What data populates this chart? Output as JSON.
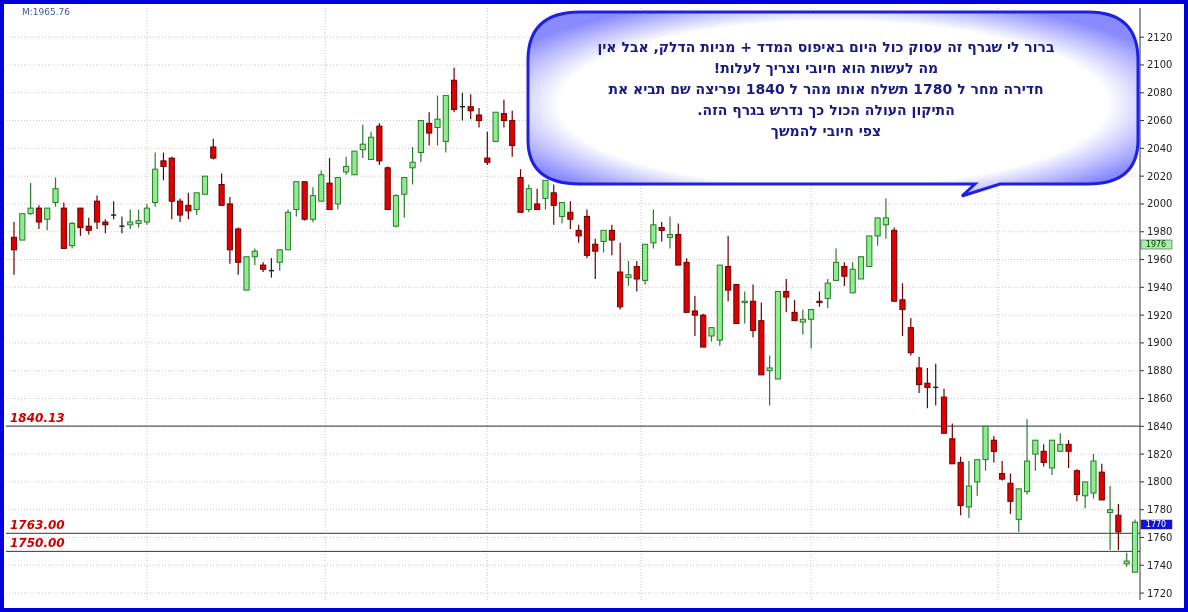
{
  "chart_data": {
    "type": "candlestick",
    "categories": [
      null,
      null,
      null,
      null,
      null,
      null,
      null,
      null,
      null,
      null,
      null,
      null,
      null,
      null,
      null,
      null,
      null,
      null,
      null,
      null,
      null,
      null,
      null,
      null,
      null,
      null,
      null,
      null,
      null,
      null,
      null,
      null,
      null,
      null,
      null,
      null,
      null,
      null,
      null,
      null,
      null,
      null,
      null,
      null,
      null,
      null,
      null,
      null,
      null,
      null,
      null,
      null,
      null,
      null,
      null,
      null,
      null,
      null,
      null,
      null,
      null,
      null,
      null,
      null,
      null,
      null,
      null,
      null,
      null,
      null,
      null,
      null,
      null,
      null,
      null,
      null,
      null,
      null,
      null,
      null,
      null,
      null,
      null,
      null,
      null,
      null,
      null,
      null,
      null,
      null,
      null,
      null,
      null,
      null,
      null,
      null,
      null,
      null,
      null,
      null,
      null,
      null,
      null,
      null,
      null,
      null,
      null,
      null,
      null,
      null,
      null,
      null,
      null,
      null,
      null,
      null,
      null,
      null,
      null,
      null,
      null,
      null,
      null,
      null,
      null,
      null,
      null,
      null,
      null,
      null,
      null,
      null,
      null,
      null,
      null,
      null
    ],
    "ohlc": [
      [
        1976,
        1987,
        1949,
        1967
      ],
      [
        1974,
        1993,
        1974,
        1993
      ],
      [
        1993,
        2015,
        1992,
        1997
      ],
      [
        1997,
        1999,
        1982,
        1987
      ],
      [
        1989,
        1997,
        1981,
        1997
      ],
      [
        2001,
        2019,
        1998,
        2011
      ],
      [
        1997,
        2001,
        1968,
        1968
      ],
      [
        1970,
        1987,
        1968,
        1986
      ],
      [
        1997,
        1997,
        1977,
        1983
      ],
      [
        1984,
        1990,
        1978,
        1981
      ],
      [
        2002,
        2006,
        1982,
        1987
      ],
      [
        1987,
        1989,
        1979,
        1985
      ],
      [
        1992,
        2002,
        1989,
        1992
      ],
      [
        1984,
        1991,
        1979,
        1984
      ],
      [
        1985,
        1996,
        1982,
        1987
      ],
      [
        1986,
        1996,
        1983,
        1988
      ],
      [
        1987,
        2000,
        1985,
        1997
      ],
      [
        2001,
        2037,
        1998,
        2025
      ],
      [
        2031,
        2037,
        2017,
        2027
      ],
      [
        2033,
        2034,
        1989,
        2002
      ],
      [
        2002,
        2004,
        1987,
        1992
      ],
      [
        1999,
        2008,
        1989,
        1995
      ],
      [
        1996,
        2008,
        1992,
        2008
      ],
      [
        2007,
        2020,
        2007,
        2020
      ],
      [
        2041,
        2047,
        2032,
        2033
      ],
      [
        2014,
        2022,
        1999,
        1999
      ],
      [
        2000,
        2005,
        1957,
        1967
      ],
      [
        1982,
        1983,
        1949,
        1958
      ],
      [
        1938,
        1962,
        1938,
        1962
      ],
      [
        1962,
        1968,
        1956,
        1966
      ],
      [
        1956,
        1958,
        1951,
        1953
      ],
      [
        1952,
        1961,
        1947,
        1952
      ],
      [
        1958,
        1967,
        1952,
        1967
      ],
      [
        1967,
        1996,
        1967,
        1994
      ],
      [
        1996,
        2016,
        1991,
        2016
      ],
      [
        2016,
        2016,
        1988,
        1989
      ],
      [
        1989,
        2012,
        1987,
        2006
      ],
      [
        2002,
        2024,
        2002,
        2021
      ],
      [
        2015,
        2033,
        1996,
        1996
      ],
      [
        2000,
        2019,
        1996,
        2019
      ],
      [
        2023,
        2034,
        2021,
        2027
      ],
      [
        2021,
        2038,
        2021,
        2038
      ],
      [
        2039,
        2057,
        2033,
        2043
      ],
      [
        2032,
        2052,
        2032,
        2048
      ],
      [
        2056,
        2058,
        2028,
        2031
      ],
      [
        2026,
        2027,
        1996,
        1996
      ],
      [
        1984,
        2007,
        1983,
        2006
      ],
      [
        2007,
        2019,
        1990,
        2019
      ],
      [
        2026,
        2041,
        2014,
        2030
      ],
      [
        2037,
        2060,
        2030,
        2060
      ],
      [
        2058,
        2066,
        2042,
        2051
      ],
      [
        2055,
        2078,
        2042,
        2061
      ],
      [
        2045,
        2078,
        2037,
        2078
      ],
      [
        2089,
        2098,
        2066,
        2068
      ],
      [
        2070,
        2080,
        2060,
        2070
      ],
      [
        2070,
        2079,
        2061,
        2067
      ],
      [
        2064,
        2069,
        2055,
        2060
      ],
      [
        2033,
        2052,
        2028,
        2030
      ],
      [
        2045,
        2066,
        2045,
        2066
      ],
      [
        2065,
        2075,
        2055,
        2060
      ],
      [
        2060,
        2067,
        2034,
        2042
      ],
      [
        2019,
        2025,
        1994,
        1994
      ],
      [
        1996,
        2014,
        1994,
        2011
      ],
      [
        2000,
        2011,
        1996,
        1996
      ],
      [
        2004,
        2017,
        1996,
        2017
      ],
      [
        2008,
        2014,
        1985,
        1999
      ],
      [
        1991,
        2001,
        1986,
        2001
      ],
      [
        1994,
        2002,
        1982,
        1989
      ],
      [
        1981,
        1985,
        1972,
        1977
      ],
      [
        1991,
        1996,
        1961,
        1963
      ],
      [
        1971,
        1975,
        1946,
        1966
      ],
      [
        1973,
        1981,
        1965,
        1981
      ],
      [
        1981,
        1985,
        1963,
        1974
      ],
      [
        1951,
        1972,
        1924,
        1926
      ],
      [
        1947,
        1959,
        1941,
        1949
      ],
      [
        1955,
        1959,
        1937,
        1946
      ],
      [
        1945,
        1971,
        1942,
        1971
      ],
      [
        1972,
        1996,
        1968,
        1985
      ],
      [
        1983,
        1987,
        1973,
        1981
      ],
      [
        1976,
        1991,
        1968,
        1978
      ],
      [
        1978,
        1986,
        1956,
        1956
      ],
      [
        1958,
        1961,
        1922,
        1922
      ],
      [
        1923,
        1934,
        1905,
        1920
      ],
      [
        1920,
        1921,
        1897,
        1897
      ],
      [
        1905,
        1911,
        1901,
        1911
      ],
      [
        1902,
        1956,
        1898,
        1956
      ],
      [
        1955,
        1977,
        1930,
        1938
      ],
      [
        1942,
        1942,
        1914,
        1914
      ],
      [
        1929,
        1937,
        1914,
        1930
      ],
      [
        1930,
        1942,
        1904,
        1909
      ],
      [
        1916,
        1929,
        1877,
        1877
      ],
      [
        1880,
        1891,
        1855,
        1882
      ],
      [
        1874,
        1937,
        1874,
        1937
      ],
      [
        1937,
        1946,
        1922,
        1933
      ],
      [
        1922,
        1931,
        1916,
        1916
      ],
      [
        1915,
        1924,
        1906,
        1917
      ],
      [
        1917,
        1924,
        1896,
        1924
      ],
      [
        1930,
        1937,
        1926,
        1929
      ],
      [
        1932,
        1946,
        1925,
        1943
      ],
      [
        1945,
        1968,
        1945,
        1958
      ],
      [
        1955,
        1958,
        1941,
        1948
      ],
      [
        1936,
        1958,
        1936,
        1953
      ],
      [
        1946,
        1962,
        1946,
        1962
      ],
      [
        1955,
        1977,
        1955,
        1977
      ],
      [
        1977,
        1990,
        1970,
        1990
      ],
      [
        1985,
        2004,
        1975,
        1990
      ],
      [
        1981,
        1983,
        1930,
        1930
      ],
      [
        1931,
        1943,
        1905,
        1924
      ],
      [
        1911,
        1918,
        1891,
        1893
      ],
      [
        1882,
        1890,
        1864,
        1870
      ],
      [
        1871,
        1882,
        1853,
        1868
      ],
      [
        1868,
        1885,
        1855,
        1868
      ],
      [
        1861,
        1867,
        1835,
        1835
      ],
      [
        1831,
        1842,
        1813,
        1813
      ],
      [
        1814,
        1818,
        1776,
        1783
      ],
      [
        1782,
        1815,
        1774,
        1797
      ],
      [
        1800,
        1816,
        1790,
        1816
      ],
      [
        1816,
        1840,
        1808,
        1840
      ],
      [
        1830,
        1833,
        1814,
        1822
      ],
      [
        1806,
        1815,
        1801,
        1802
      ],
      [
        1799,
        1806,
        1777,
        1786
      ],
      [
        1773,
        1795,
        1764,
        1795
      ],
      [
        1793,
        1845,
        1791,
        1815
      ],
      [
        1820,
        1830,
        1808,
        1830
      ],
      [
        1822,
        1827,
        1811,
        1814
      ],
      [
        1810,
        1830,
        1805,
        1830
      ],
      [
        1822,
        1835,
        1822,
        1827
      ],
      [
        1827,
        1830,
        1810,
        1822
      ],
      [
        1808,
        1809,
        1786,
        1791
      ],
      [
        1790,
        1800,
        1781,
        1800
      ],
      [
        1792,
        1820,
        1788,
        1815
      ],
      [
        1807,
        1813,
        1787,
        1787
      ],
      [
        1778,
        1797,
        1751,
        1780
      ],
      [
        1776,
        1784,
        1751,
        1764
      ],
      [
        1741,
        1749,
        1739,
        1743
      ],
      [
        1735,
        1773,
        1735,
        1771
      ]
    ],
    "ylim": [
      1715,
      2141
    ],
    "yticks": [
      1720,
      1740,
      1760,
      1780,
      1800,
      1820,
      1840,
      1860,
      1880,
      1900,
      1920,
      1940,
      1960,
      1980,
      2000,
      2020,
      2040,
      2060,
      2080,
      2100,
      2120
    ],
    "grid": true,
    "ref_lines": [
      {
        "axis": "y",
        "value": 1840.13,
        "label": "1840.13"
      },
      {
        "axis": "y",
        "value": 1763,
        "label": "1763.00"
      },
      {
        "axis": "y",
        "value": 1750,
        "label": "1750.00"
      }
    ],
    "annotations": [
      "M:1965.76",
      "ברור לי שגרף זה עסוק כול היום  באיפוס המדד + מניות הדלק, אבל אין\nמה לעשות הוא חיובי וצריך לעלות!\nחדירה מחר ל 1780  תשלח אותו מהר ל 1840 ופריצה שם  תביא את\nהתיקון העולה הכול כך נדרש בגרף הזה.\nצפי חיובי להמשך",
      "1976",
      "1770"
    ]
  }
}
